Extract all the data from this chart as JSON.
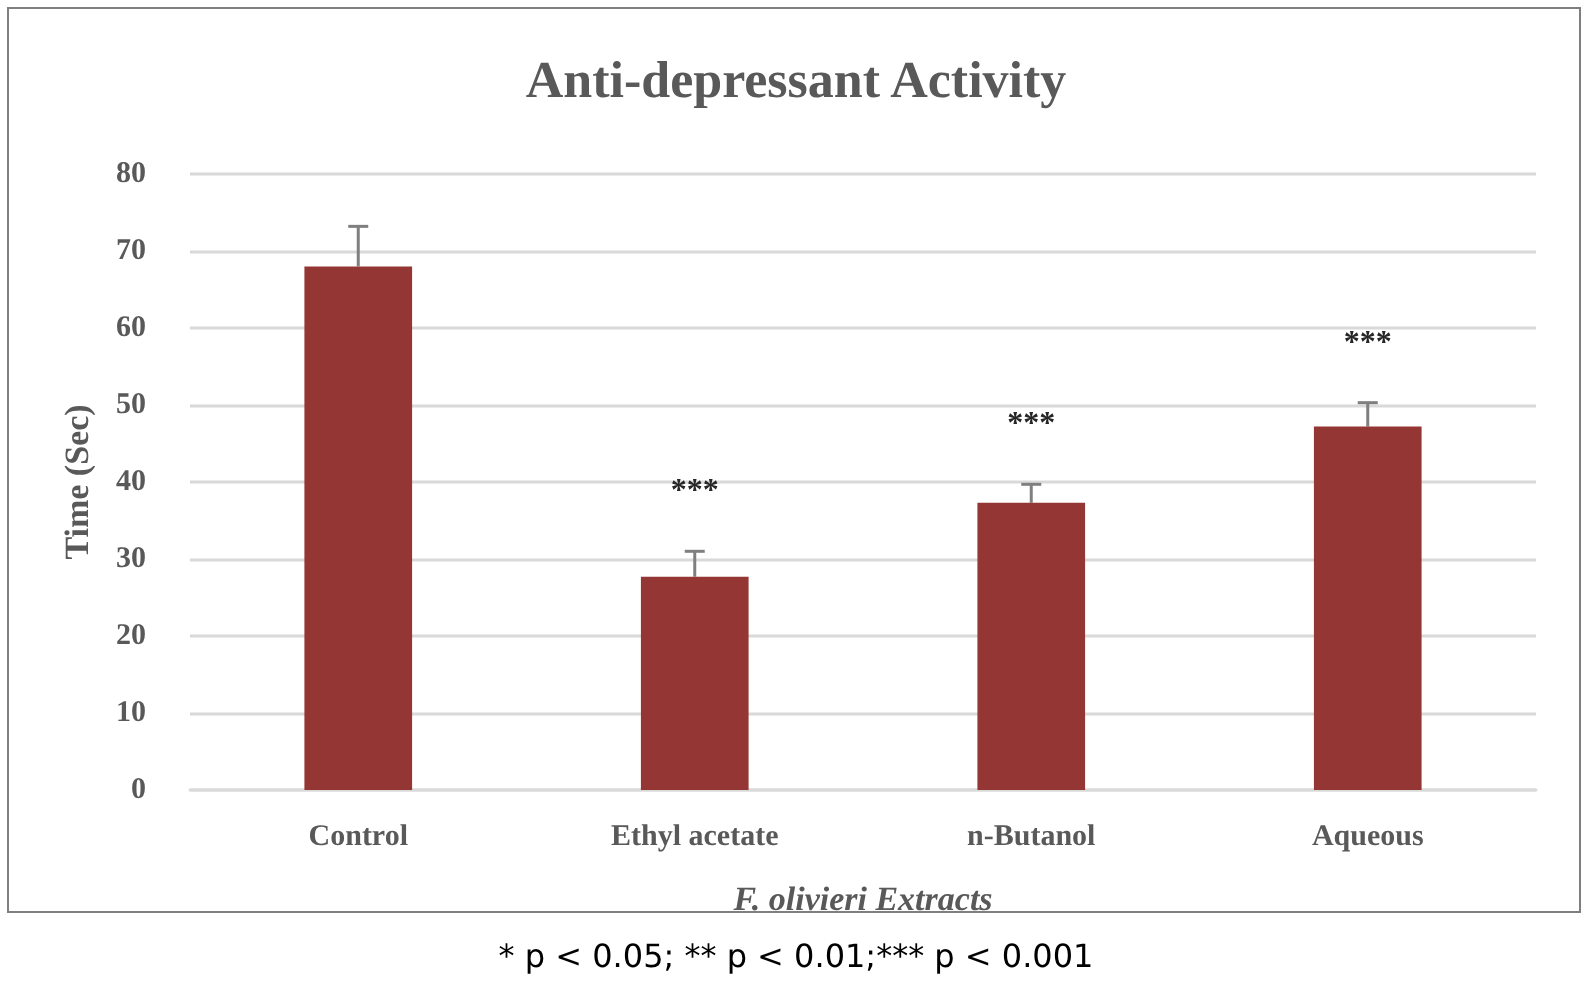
{
  "chart_data": {
    "type": "bar",
    "title": "Anti-depressant Activity",
    "xlabel": "F. olivieri Extracts",
    "ylabel": "Time (Sec)",
    "categories": [
      "Control",
      "Ethyl acetate",
      "n-Butanol",
      "Aqueous"
    ],
    "values": [
      68,
      27.7,
      37.3,
      47.2
    ],
    "errors": [
      [
        68,
        73.2
      ],
      [
        27.7,
        31
      ],
      [
        37.3,
        39.7
      ],
      [
        47.2,
        50.3
      ]
    ],
    "color": "#943634",
    "ylim": [
      0,
      80
    ],
    "yticks": [
      0,
      10,
      20,
      30,
      40,
      50,
      60,
      70,
      80
    ],
    "grid": "y",
    "annotations": [
      {
        "text": "***",
        "x": "Ethyl acetate",
        "y": 31
      },
      {
        "text": "***",
        "x": "n-Butanol",
        "y": 39.7
      },
      {
        "text": "***",
        "x": "Aqueous",
        "y": 50.3
      },
      "* p < 0.05; ** p < 0.01;*** p < 0.001"
    ]
  }
}
